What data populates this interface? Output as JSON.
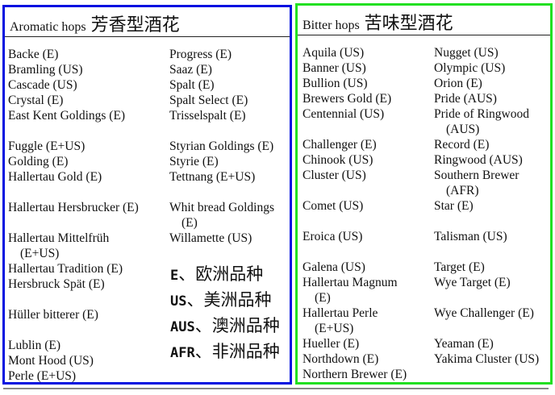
{
  "aromatic": {
    "title": "Aromatic hops",
    "title_zh": "芳香型酒花",
    "left": [
      "Backe (E)",
      "Bramling (US)",
      "Cascade (US)",
      "Crystal (E)",
      "East Kent Goldings (E)",
      "",
      "Fuggle (E+US)",
      "Golding (E)",
      "Hallertau Gold (E)",
      "",
      "Hallertau Hersbrucker (E)",
      "",
      "Hallertau Mittelfrüh",
      {
        "t": "(E+US)",
        "cont": true
      },
      "Hallertau Tradition (E)",
      "Hersbruck Spät (E)",
      "",
      "Hüller bitterer (E)",
      "",
      "Lublin (E)",
      "Mont Hood (US)",
      "Perle (E+US)"
    ],
    "right": [
      "Progress (E)",
      "Saaz (E)",
      "Spalt (E)",
      "Spalt Select (E)",
      "Trisselspalt (E)",
      "",
      "Styrian Goldings (E)",
      "Styrie (E)",
      "Tettnang (E+US)",
      "",
      "Whit bread Goldings",
      {
        "t": "(E)",
        "cont": true
      },
      "Willamette (US)"
    ]
  },
  "legend": [
    {
      "code": "E",
      "sep": "、",
      "label": "欧洲品种"
    },
    {
      "code": "US",
      "sep": "、",
      "label": "美洲品种"
    },
    {
      "code": "AUS",
      "sep": "、",
      "label": "澳洲品种"
    },
    {
      "code": "AFR",
      "sep": "、",
      "label": "非洲品种"
    }
  ],
  "bitter": {
    "title": "Bitter hops",
    "title_zh": "苦味型酒花",
    "left": [
      "Aquila (US)",
      "Banner (US)",
      "Bullion (US)",
      "Brewers Gold (E)",
      "Centennial (US)",
      "",
      "Challenger (E)",
      "Chinook (US)",
      "Cluster (US)",
      "",
      "Comet (US)",
      "",
      "Eroica (US)",
      "",
      "Galena (US)",
      "Hallertau Magnum",
      {
        "t": "(E)",
        "cont": true
      },
      "Hallertau Perle",
      {
        "t": "(E+US)",
        "cont": true
      },
      "Hueller (E)",
      "Northdown (E)",
      "Northern Brewer (E)"
    ],
    "right": [
      "Nugget (US)",
      "Olympic (US)",
      "Orion (E)",
      "Pride (AUS)",
      "Pride of Ringwood",
      {
        "t": "(AUS)",
        "cont": true
      },
      "Record (E)",
      "Ringwood (AUS)",
      "Southern Brewer",
      {
        "t": "(AFR)",
        "cont": true
      },
      "Star (E)",
      "",
      "Talisman (US)",
      "",
      "Target (E)",
      "Wye Target (E)",
      "",
      "Wye Challenger (E)",
      "",
      "Yeaman (E)",
      "Yakima Cluster (US)"
    ]
  },
  "colors": {
    "aromatic_border": "#0010e0",
    "bitter_border": "#22e022"
  }
}
